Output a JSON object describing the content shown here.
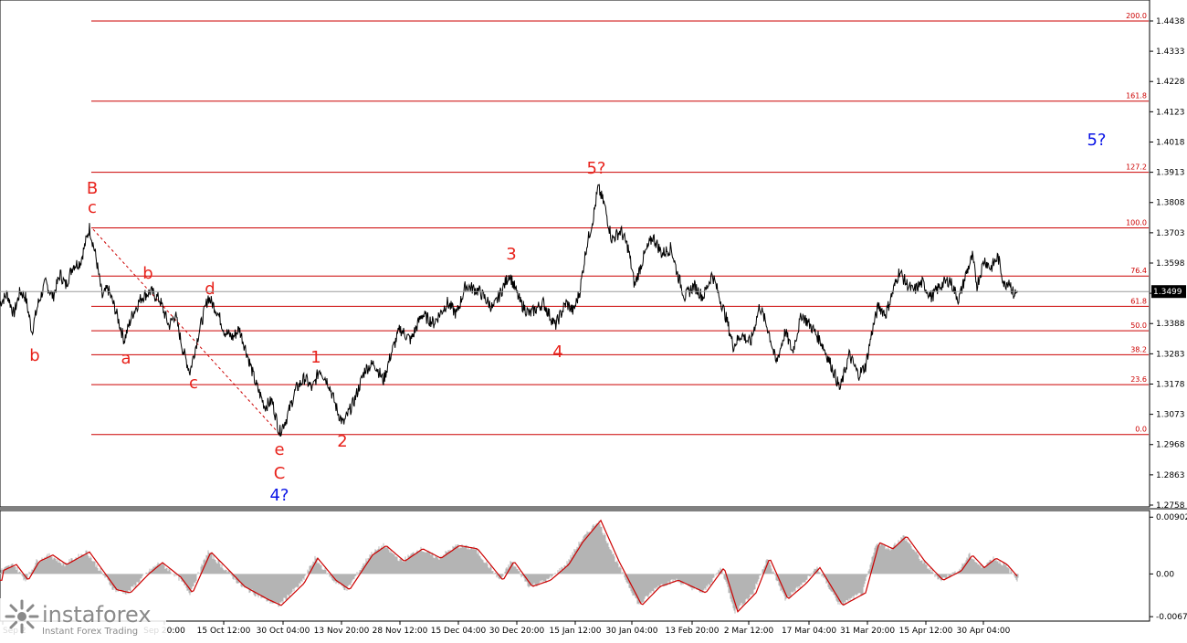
{
  "chart_data": {
    "type": "line",
    "price_axis": {
      "ticks": [
        "1.4438",
        "1.4333",
        "1.4228",
        "1.4123",
        "1.4018",
        "1.3913",
        "1.3808",
        "1.3703",
        "1.3598",
        "1.3493",
        "1.3388",
        "1.3283",
        "1.3178",
        "1.3073",
        "1.2968",
        "1.2863",
        "1.2758"
      ],
      "range": [
        1.2758,
        1.4495
      ],
      "current_price": "1.3499"
    },
    "oscillator_axis": {
      "ticks": [
        "0.00902",
        "0.00",
        "-0.00679"
      ],
      "range": [
        -0.0072,
        0.0092
      ]
    },
    "x_ticks": [
      "Sep 2",
      "Sep 20:00",
      "15 Oct 12:00",
      "30 Oct 04:00",
      "13 Nov 20:00",
      "28 Nov 12:00",
      "15 Dec 04:00",
      "30 Dec 20:00",
      "15 Jan 12:00",
      "30 Jan 04:00",
      "13 Feb 20:00",
      "2 Mar 12:00",
      "17 Mar 04:00",
      "31 Mar 20:00",
      "15 Apr 12:00",
      "30 Apr 04:00"
    ],
    "fib_levels": [
      {
        "label": "200.0",
        "price": 1.4438
      },
      {
        "label": "161.8",
        "price": 1.416
      },
      {
        "label": "127.2",
        "price": 1.3913
      },
      {
        "label": "100.0",
        "price": 1.372
      },
      {
        "label": "76.4",
        "price": 1.3553
      },
      {
        "label": "61.8",
        "price": 1.3448
      },
      {
        "label": "50.0",
        "price": 1.3363
      },
      {
        "label": "38.2",
        "price": 1.328
      },
      {
        "label": "23.6",
        "price": 1.3176
      },
      {
        "label": "0.0",
        "price": 1.3003
      }
    ],
    "price_path": [
      [
        1.346,
        0
      ],
      [
        1.349,
        8
      ],
      [
        1.342,
        15
      ],
      [
        1.35,
        22
      ],
      [
        1.348,
        28
      ],
      [
        1.336,
        35
      ],
      [
        1.346,
        42
      ],
      [
        1.353,
        50
      ],
      [
        1.348,
        58
      ],
      [
        1.356,
        66
      ],
      [
        1.352,
        72
      ],
      [
        1.359,
        80
      ],
      [
        1.36,
        88
      ],
      [
        1.372,
        98
      ],
      [
        1.362,
        105
      ],
      [
        1.348,
        112
      ],
      [
        1.351,
        118
      ],
      [
        1.344,
        126
      ],
      [
        1.333,
        136
      ],
      [
        1.342,
        145
      ],
      [
        1.348,
        155
      ],
      [
        1.35,
        165
      ],
      [
        1.347,
        175
      ],
      [
        1.338,
        185
      ],
      [
        1.342,
        192
      ],
      [
        1.33,
        200
      ],
      [
        1.322,
        208
      ],
      [
        1.336,
        218
      ],
      [
        1.348,
        228
      ],
      [
        1.343,
        238
      ],
      [
        1.336,
        246
      ],
      [
        1.334,
        255
      ],
      [
        1.337,
        262
      ],
      [
        1.329,
        270
      ],
      [
        1.318,
        280
      ],
      [
        1.31,
        290
      ],
      [
        1.312,
        298
      ],
      [
        1.301,
        306
      ],
      [
        1.306,
        314
      ],
      [
        1.316,
        324
      ],
      [
        1.32,
        334
      ],
      [
        1.316,
        342
      ],
      [
        1.323,
        350
      ],
      [
        1.318,
        360
      ],
      [
        1.308,
        370
      ],
      [
        1.304,
        376
      ],
      [
        1.312,
        388
      ],
      [
        1.323,
        400
      ],
      [
        1.325,
        410
      ],
      [
        1.319,
        420
      ],
      [
        1.328,
        428
      ],
      [
        1.337,
        438
      ],
      [
        1.333,
        450
      ],
      [
        1.342,
        462
      ],
      [
        1.339,
        475
      ],
      [
        1.346,
        490
      ],
      [
        1.342,
        500
      ],
      [
        1.352,
        510
      ],
      [
        1.35,
        525
      ],
      [
        1.344,
        540
      ],
      [
        1.356,
        558
      ],
      [
        1.346,
        570
      ],
      [
        1.342,
        580
      ],
      [
        1.346,
        595
      ],
      [
        1.338,
        608
      ],
      [
        1.346,
        620
      ],
      [
        1.343,
        628
      ],
      [
        1.35,
        635
      ],
      [
        1.365,
        642
      ],
      [
        1.376,
        650
      ],
      [
        1.386,
        655
      ],
      [
        1.38,
        662
      ],
      [
        1.368,
        670
      ],
      [
        1.371,
        680
      ],
      [
        1.365,
        688
      ],
      [
        1.352,
        695
      ],
      [
        1.362,
        705
      ],
      [
        1.369,
        715
      ],
      [
        1.363,
        725
      ],
      [
        1.365,
        735
      ],
      [
        1.356,
        742
      ],
      [
        1.348,
        750
      ],
      [
        1.352,
        760
      ],
      [
        1.348,
        770
      ],
      [
        1.356,
        780
      ],
      [
        1.348,
        788
      ],
      [
        1.34,
        796
      ],
      [
        1.331,
        803
      ],
      [
        1.335,
        812
      ],
      [
        1.332,
        822
      ],
      [
        1.345,
        832
      ],
      [
        1.336,
        842
      ],
      [
        1.325,
        850
      ],
      [
        1.336,
        860
      ],
      [
        1.329,
        868
      ],
      [
        1.342,
        878
      ],
      [
        1.337,
        890
      ],
      [
        1.332,
        900
      ],
      [
        1.323,
        912
      ],
      [
        1.316,
        920
      ],
      [
        1.328,
        930
      ],
      [
        1.321,
        940
      ],
      [
        1.324,
        948
      ],
      [
        1.336,
        955
      ],
      [
        1.345,
        962
      ],
      [
        1.342,
        970
      ],
      [
        1.35,
        978
      ],
      [
        1.357,
        985
      ],
      [
        1.353,
        992
      ],
      [
        1.35,
        1000
      ],
      [
        1.353,
        1010
      ],
      [
        1.348,
        1020
      ],
      [
        1.352,
        1030
      ],
      [
        1.354,
        1040
      ],
      [
        1.347,
        1050
      ],
      [
        1.356,
        1058
      ],
      [
        1.362,
        1065
      ],
      [
        1.352,
        1070
      ],
      [
        1.361,
        1078
      ],
      [
        1.358,
        1085
      ],
      [
        1.362,
        1093
      ],
      [
        1.352,
        1100
      ],
      [
        1.354,
        1105
      ],
      [
        1.349,
        1110
      ],
      [
        1.3499,
        1115
      ]
    ],
    "oscillator_path": [
      [
        0.0005,
        0
      ],
      [
        0.0015,
        15
      ],
      [
        -0.001,
        28
      ],
      [
        0.002,
        40
      ],
      [
        0.003,
        55
      ],
      [
        0.0015,
        70
      ],
      [
        0.0035,
        95
      ],
      [
        0.0005,
        110
      ],
      [
        -0.0025,
        125
      ],
      [
        -0.003,
        140
      ],
      [
        0.0,
        160
      ],
      [
        0.0018,
        175
      ],
      [
        -0.0005,
        195
      ],
      [
        -0.003,
        208
      ],
      [
        0.0035,
        228
      ],
      [
        0.001,
        245
      ],
      [
        -0.002,
        265
      ],
      [
        -0.004,
        290
      ],
      [
        -0.005,
        305
      ],
      [
        -0.0015,
        330
      ],
      [
        0.0025,
        345
      ],
      [
        -0.001,
        365
      ],
      [
        -0.0025,
        380
      ],
      [
        0.003,
        405
      ],
      [
        0.0045,
        420
      ],
      [
        0.002,
        440
      ],
      [
        0.004,
        460
      ],
      [
        0.0025,
        480
      ],
      [
        0.0045,
        500
      ],
      [
        0.004,
        520
      ],
      [
        -0.001,
        548
      ],
      [
        0.002,
        560
      ],
      [
        -0.002,
        580
      ],
      [
        -0.001,
        600
      ],
      [
        0.0015,
        620
      ],
      [
        0.005,
        635
      ],
      [
        0.0085,
        655
      ],
      [
        0.002,
        675
      ],
      [
        -0.005,
        700
      ],
      [
        -0.002,
        720
      ],
      [
        -0.001,
        740
      ],
      [
        -0.003,
        770
      ],
      [
        0.001,
        790
      ],
      [
        -0.006,
        805
      ],
      [
        -0.003,
        825
      ],
      [
        0.0025,
        840
      ],
      [
        -0.004,
        860
      ],
      [
        -0.0015,
        880
      ],
      [
        0.001,
        895
      ],
      [
        -0.005,
        920
      ],
      [
        -0.003,
        945
      ],
      [
        0.005,
        960
      ],
      [
        0.004,
        975
      ],
      [
        0.006,
        990
      ],
      [
        0.002,
        1010
      ],
      [
        -0.001,
        1030
      ],
      [
        0.0005,
        1050
      ],
      [
        0.003,
        1062
      ],
      [
        0.001,
        1075
      ],
      [
        0.0025,
        1088
      ],
      [
        0.0015,
        1100
      ],
      [
        -0.001,
        1115
      ]
    ],
    "wave_labels": [
      {
        "text": "B",
        "color": "#e8221b"
      },
      {
        "text": "c",
        "color": "#e8221b"
      },
      {
        "text": "b",
        "color": "#e8221b"
      },
      {
        "text": "a",
        "color": "#e8221b"
      },
      {
        "text": "b",
        "color": "#e8221b"
      },
      {
        "text": "c",
        "color": "#e8221b"
      },
      {
        "text": "d",
        "color": "#e8221b"
      },
      {
        "text": "e",
        "color": "#e8221b"
      },
      {
        "text": "C",
        "color": "#e8221b"
      },
      {
        "text": "4?",
        "color": "#0a14e6"
      },
      {
        "text": "1",
        "color": "#e8221b"
      },
      {
        "text": "2",
        "color": "#e8221b"
      },
      {
        "text": "3",
        "color": "#e8221b"
      },
      {
        "text": "4",
        "color": "#e8221b"
      },
      {
        "text": "5?",
        "color": "#e8221b"
      },
      {
        "text": "5?",
        "color": "#0a14e6"
      }
    ]
  },
  "colors": {
    "price_line": "#000000",
    "fib_line": "#cc0000",
    "oscillator_histogram": "#b4b4b4",
    "oscillator_signal": "#cc0000",
    "current_price_box": "#000000",
    "trend_line": "#cc0000"
  },
  "branding": {
    "logo_text": "instaforex",
    "logo_tagline": "Instant Forex Trading",
    "logo_icon": "instaforex-sunburst-icon"
  }
}
